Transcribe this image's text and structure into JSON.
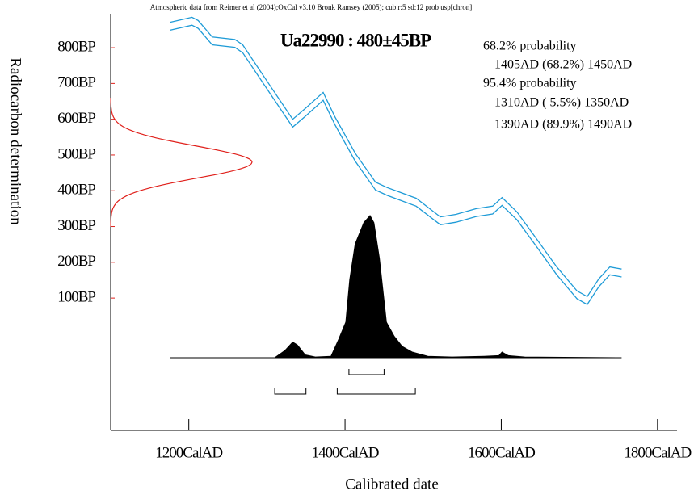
{
  "chart_data": {
    "type": "calibration",
    "note": "Atmospheric data from Reimer et al (2004);OxCal v3.10 Bronk Ramsey (2005); cub r:5 sd:12 prob usp[chron]",
    "title": "Ua22990 : 480±45BP",
    "xlabel": "Calibrated date",
    "ylabel": "Radiocarbon determination",
    "xlim": [
      1100,
      1825
    ],
    "ylim": [
      -270,
      895
    ],
    "xticks": [
      {
        "value": 1200,
        "label": "1200CalAD"
      },
      {
        "value": 1400,
        "label": "1400CalAD"
      },
      {
        "value": 1600,
        "label": "1600CalAD"
      },
      {
        "value": 1800,
        "label": "1800CalAD"
      }
    ],
    "yticks": [
      {
        "value": 100,
        "label": "100BP"
      },
      {
        "value": 200,
        "label": "200BP"
      },
      {
        "value": 300,
        "label": "300BP"
      },
      {
        "value": 400,
        "label": "400BP"
      },
      {
        "value": 500,
        "label": "500BP"
      },
      {
        "value": 600,
        "label": "600BP"
      },
      {
        "value": 700,
        "label": "700BP"
      },
      {
        "value": 800,
        "label": "800BP"
      }
    ],
    "curve": {
      "color": "#1e9bd7",
      "x": [
        1176,
        1204,
        1212,
        1230,
        1259,
        1269,
        1300,
        1333,
        1349,
        1372,
        1387,
        1413,
        1439,
        1454,
        1491,
        1522,
        1542,
        1568,
        1589,
        1601,
        1620,
        1645,
        1671,
        1697,
        1710,
        1725,
        1739,
        1754
      ],
      "upper": [
        871,
        885,
        876,
        830,
        823,
        808,
        707,
        600,
        630,
        675,
        607,
        505,
        424,
        409,
        379,
        327,
        334,
        350,
        357,
        381,
        341,
        266,
        187,
        120,
        104,
        154,
        187,
        181
      ],
      "lower": [
        849,
        863,
        854,
        808,
        801,
        786,
        685,
        578,
        608,
        653,
        585,
        483,
        402,
        387,
        357,
        305,
        312,
        328,
        335,
        359,
        319,
        244,
        165,
        98,
        82,
        132,
        165,
        159
      ]
    },
    "radiocarbon": {
      "bp": 480,
      "sd": 45,
      "color": "#e0201b"
    },
    "posterior": {
      "color": "#000000",
      "x": [
        1176,
        1310,
        1323,
        1333,
        1339,
        1349,
        1362,
        1382,
        1392,
        1401,
        1406,
        1413,
        1424,
        1432,
        1437,
        1444,
        1453,
        1463,
        1473,
        1486,
        1506,
        1537,
        1578,
        1597,
        1601,
        1609,
        1630,
        1754
      ],
      "values": [
        0,
        0,
        0.05,
        0.11,
        0.09,
        0.02,
        0.005,
        0.01,
        0.13,
        0.25,
        0.55,
        0.8,
        0.95,
        1,
        0.95,
        0.7,
        0.25,
        0.15,
        0.08,
        0.04,
        0.01,
        0.005,
        0.01,
        0.015,
        0.04,
        0.015,
        0.005,
        0
      ]
    },
    "ranges": [
      {
        "label": "68.2% probability",
        "intervals": [
          {
            "label": "1405AD (68.2%) 1450AD",
            "from": 1405,
            "to": 1450
          }
        ]
      },
      {
        "label": "95.4% probability",
        "intervals": [
          {
            "label": "1310AD ( 5.5%) 1350AD",
            "from": 1310,
            "to": 1350
          },
          {
            "label": "1390AD (89.9%) 1490AD",
            "from": 1390,
            "to": 1490
          }
        ]
      }
    ]
  }
}
